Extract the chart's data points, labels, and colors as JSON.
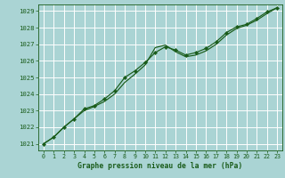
{
  "title": "Graphe pression niveau de la mer (hPa)",
  "bg_color": "#aad4d4",
  "grid_color": "#ffffff",
  "line_color": "#1a5c1a",
  "marker_color": "#1a5c1a",
  "xlim": [
    -0.5,
    23.5
  ],
  "ylim": [
    1020.6,
    1029.4
  ],
  "yticks": [
    1021,
    1022,
    1023,
    1024,
    1025,
    1026,
    1027,
    1028,
    1029
  ],
  "xticks": [
    0,
    1,
    2,
    3,
    4,
    5,
    6,
    7,
    8,
    9,
    10,
    11,
    12,
    13,
    14,
    15,
    16,
    17,
    18,
    19,
    20,
    21,
    22,
    23
  ],
  "series1_x": [
    0,
    1,
    2,
    3,
    4,
    5,
    6,
    7,
    8,
    9,
    10,
    11,
    12,
    13,
    14,
    15,
    16,
    17,
    18,
    19,
    20,
    21,
    22,
    23
  ],
  "series1_y": [
    1021.0,
    1021.4,
    1022.0,
    1022.5,
    1023.1,
    1023.3,
    1023.7,
    1024.2,
    1025.0,
    1025.4,
    1025.9,
    1026.5,
    1026.85,
    1026.65,
    1026.35,
    1026.5,
    1026.75,
    1027.15,
    1027.7,
    1028.05,
    1028.2,
    1028.55,
    1028.95,
    1029.2
  ],
  "series2_x": [
    0,
    1,
    2,
    3,
    4,
    5,
    6,
    7,
    8,
    9,
    10,
    11,
    12,
    13,
    14,
    15,
    16,
    17,
    18,
    19,
    20,
    21,
    22,
    23
  ],
  "series2_y": [
    1021.0,
    1021.4,
    1022.0,
    1022.5,
    1023.0,
    1023.25,
    1023.55,
    1024.0,
    1024.7,
    1025.2,
    1025.75,
    1026.8,
    1026.95,
    1026.55,
    1026.25,
    1026.35,
    1026.6,
    1027.0,
    1027.55,
    1027.95,
    1028.15,
    1028.45,
    1028.85,
    1029.2
  ],
  "title_fontsize": 5.8,
  "tick_fontsize": 4.8,
  "ytick_fontsize": 5.2
}
